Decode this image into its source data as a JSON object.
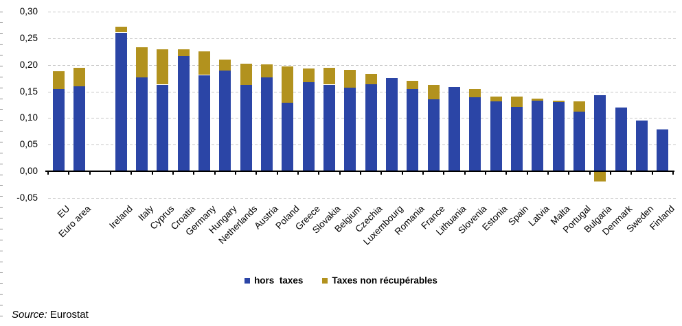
{
  "source": {
    "label": "Source:",
    "value": "Eurostat"
  },
  "chart_data": {
    "type": "bar",
    "stacked": true,
    "title": "",
    "xlabel": "",
    "ylabel": "",
    "unit_style": "decimal comma (French)",
    "grid": "horizontal dashed",
    "legend_position": "bottom-center",
    "ylim": [
      -0.05,
      0.3
    ],
    "yticks": [
      {
        "value": 0.3,
        "label": "0,30"
      },
      {
        "value": 0.25,
        "label": "0,25"
      },
      {
        "value": 0.2,
        "label": "0,20"
      },
      {
        "value": 0.15,
        "label": "0,15"
      },
      {
        "value": 0.1,
        "label": "0,10"
      },
      {
        "value": 0.05,
        "label": "0,05"
      },
      {
        "value": 0.0,
        "label": "0,00"
      },
      {
        "value": -0.05,
        "label": "-0,05"
      }
    ],
    "categories": [
      "EU",
      "Euro area",
      "Ireland",
      "Italy",
      "Cyprus",
      "Croatia",
      "Germany",
      "Hungary",
      "Netherlands",
      "Austria",
      "Poland",
      "Greece",
      "Slovakia",
      "Belgium",
      "Czechia",
      "Luxembourg",
      "Romania",
      "France",
      "Lithuania",
      "Slovenia",
      "Estonia",
      "Spain",
      "Latvia",
      "Malta",
      "Portugal",
      "Bulgaria",
      "Denmark",
      "Sweden",
      "Finland"
    ],
    "gap_slot_index": 2,
    "separator_after": "Euro area",
    "series": [
      {
        "name": "hors  taxes",
        "color": "#2B45A6",
        "values": [
          0.155,
          0.16,
          0.261,
          0.176,
          0.163,
          0.216,
          0.181,
          0.19,
          0.163,
          0.177,
          0.129,
          0.167,
          0.163,
          0.157,
          0.164,
          0.175,
          0.155,
          0.135,
          0.158,
          0.139,
          0.132,
          0.121,
          0.133,
          0.13,
          0.112,
          0.143,
          0.12,
          0.095,
          0.079
        ]
      },
      {
        "name": "Taxes non récupérables",
        "color": "#B2921E",
        "values": [
          0.033,
          0.035,
          0.011,
          0.057,
          0.066,
          0.013,
          0.045,
          0.02,
          0.04,
          0.024,
          0.068,
          0.026,
          0.032,
          0.034,
          0.019,
          0.0,
          0.015,
          0.028,
          0.0,
          0.016,
          0.009,
          0.02,
          0.004,
          0.003,
          0.02,
          -0.018,
          0.0,
          0.0,
          0.0
        ]
      }
    ]
  }
}
